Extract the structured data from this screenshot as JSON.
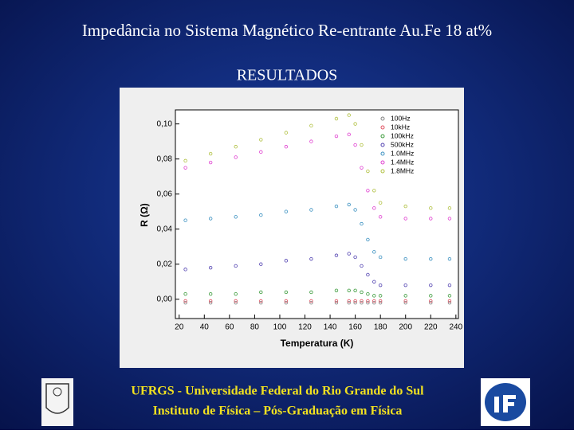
{
  "slide": {
    "title": "Impedância no Sistema Magnético Re-entrante Au.Fe 18 at%",
    "heading": "RESULTADOS",
    "footer": [
      "UFRGS - Universidade Federal do Rio Grande do Sul",
      "Instituto de Física – Pós-Graduação em Física"
    ]
  },
  "chart_data": {
    "type": "scatter",
    "x_label": "Temperatura (K)",
    "y_label": "R (Ω)",
    "x": [
      25,
      45,
      65,
      85,
      105,
      125,
      145,
      155,
      160,
      165,
      170,
      175,
      180,
      200,
      220,
      235
    ],
    "series": [
      {
        "name": "100Hz",
        "color": "#808080",
        "values": [
          -0.002,
          -0.002,
          -0.002,
          -0.002,
          -0.002,
          -0.002,
          -0.002,
          -0.002,
          -0.002,
          -0.002,
          -0.002,
          -0.002,
          -0.002,
          -0.002,
          -0.002,
          -0.002
        ]
      },
      {
        "name": "10kHz",
        "color": "#e05060",
        "values": [
          -0.001,
          -0.001,
          -0.001,
          -0.001,
          -0.001,
          -0.001,
          -0.001,
          -0.001,
          -0.001,
          -0.001,
          -0.001,
          -0.001,
          -0.001,
          -0.001,
          -0.001,
          -0.001
        ]
      },
      {
        "name": "100kHz",
        "color": "#3a9a3a",
        "values": [
          0.003,
          0.003,
          0.003,
          0.004,
          0.004,
          0.004,
          0.005,
          0.005,
          0.005,
          0.004,
          0.003,
          0.002,
          0.002,
          0.002,
          0.002,
          0.002
        ]
      },
      {
        "name": "500kHz",
        "color": "#5040b0",
        "values": [
          0.017,
          0.018,
          0.019,
          0.02,
          0.022,
          0.023,
          0.025,
          0.026,
          0.024,
          0.019,
          0.014,
          0.01,
          0.008,
          0.008,
          0.008,
          0.008
        ]
      },
      {
        "name": "1.0MHz",
        "color": "#3a90c0",
        "values": [
          0.045,
          0.046,
          0.047,
          0.048,
          0.05,
          0.051,
          0.053,
          0.054,
          0.051,
          0.043,
          0.034,
          0.027,
          0.024,
          0.023,
          0.023,
          0.023
        ]
      },
      {
        "name": "1.4MHz",
        "color": "#e040d0",
        "values": [
          0.075,
          0.078,
          0.081,
          0.084,
          0.087,
          0.09,
          0.093,
          0.094,
          0.088,
          0.075,
          0.062,
          0.052,
          0.047,
          0.046,
          0.046,
          0.046
        ]
      },
      {
        "name": "1.8MHz",
        "color": "#b0c040",
        "values": [
          0.079,
          0.083,
          0.087,
          0.091,
          0.095,
          0.099,
          0.103,
          0.105,
          0.1,
          0.088,
          0.073,
          0.062,
          0.055,
          0.053,
          0.052,
          0.052
        ]
      }
    ],
    "xlim": [
      17,
      242
    ],
    "xticks": [
      20,
      40,
      60,
      80,
      100,
      120,
      140,
      160,
      180,
      200,
      220,
      240
    ],
    "ylim": [
      -0.011,
      0.108
    ],
    "yticks": [
      {
        "value": 0,
        "label": "0,00"
      },
      {
        "value": 0.02,
        "label": "0,02"
      },
      {
        "value": 0.04,
        "label": "0,04"
      },
      {
        "value": 0.06,
        "label": "0,06"
      },
      {
        "value": 0.08,
        "label": "0,08"
      },
      {
        "value": 0.1,
        "label": "0,10"
      }
    ],
    "legend": "upper-right"
  }
}
